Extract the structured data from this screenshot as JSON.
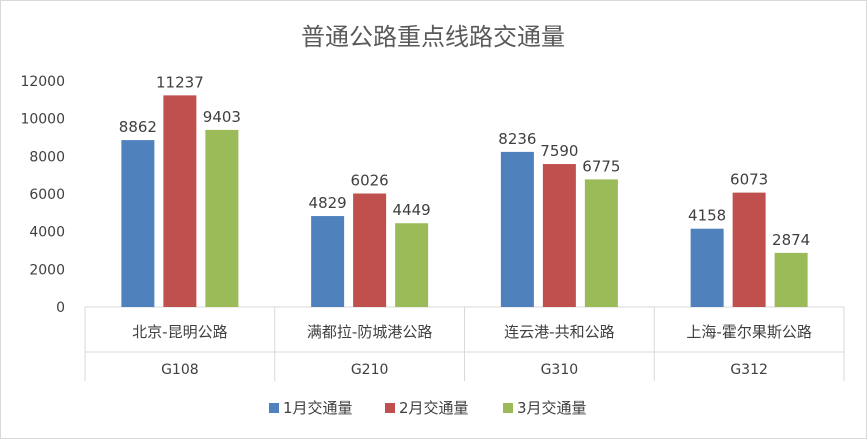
{
  "chart_data": {
    "type": "bar",
    "title": "普通公路重点线路交通量",
    "xlabel": "",
    "ylabel": "",
    "ylim": [
      0,
      12000
    ],
    "yticks": [
      0,
      2000,
      4000,
      6000,
      8000,
      10000,
      12000
    ],
    "grid": false,
    "legend_position": "bottom",
    "categories": [
      "北京-昆明公路",
      "满都拉-防城港公路",
      "连云港-共和公路",
      "上海-霍尔果斯公路"
    ],
    "category_codes": [
      "G108",
      "G210",
      "G310",
      "G312"
    ],
    "series": [
      {
        "name": "1月交通量",
        "color": "#4F81BD",
        "values": [
          8862,
          4829,
          8236,
          4158
        ]
      },
      {
        "name": "2月交通量",
        "color": "#C0504D",
        "values": [
          11237,
          6026,
          7590,
          6073
        ]
      },
      {
        "name": "3月交通量",
        "color": "#9BBB59",
        "values": [
          9403,
          4449,
          6775,
          2874
        ]
      }
    ]
  }
}
